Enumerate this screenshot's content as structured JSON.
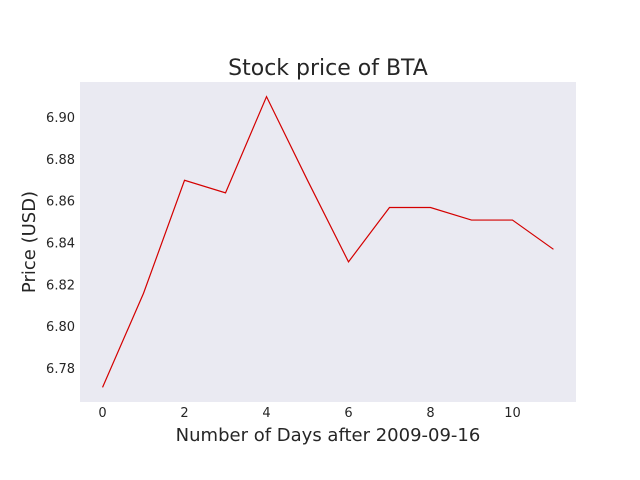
{
  "chart_data": {
    "type": "line",
    "title": "Stock price of BTA",
    "xlabel": "Number of Days after 2009-09-16",
    "ylabel": "Price (USD)",
    "x": [
      0,
      1,
      2,
      3,
      4,
      5,
      6,
      7,
      8,
      9,
      10,
      11
    ],
    "series": [
      {
        "values": [
          6.771,
          6.816,
          6.87,
          6.864,
          6.91,
          6.87,
          6.831,
          6.857,
          6.857,
          6.851,
          6.851,
          6.837
        ],
        "color": "#d40000"
      }
    ],
    "xlim": [
      -0.55,
      11.55
    ],
    "ylim": [
      6.764,
      6.917
    ],
    "xticks": [
      0,
      2,
      4,
      6,
      8,
      10
    ],
    "yticks": [
      6.78,
      6.8,
      6.82,
      6.84,
      6.86,
      6.88,
      6.9
    ],
    "yticklabels": [
      "6.78",
      "6.80",
      "6.82",
      "6.84",
      "6.86",
      "6.88",
      "6.90"
    ],
    "grid": false,
    "background": "#eaeaf2"
  }
}
